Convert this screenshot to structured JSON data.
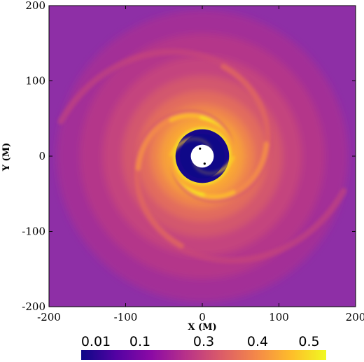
{
  "chart_data": {
    "type": "heatmap",
    "title": "",
    "xlabel": "X (M)",
    "ylabel": "Y (M)",
    "xlim": [
      -200,
      200
    ],
    "ylim": [
      -200,
      200
    ],
    "x_ticks": [
      -200,
      -100,
      0,
      100,
      200
    ],
    "y_ticks": [
      -200,
      -100,
      0,
      100,
      200
    ],
    "x_tick_labels": [
      "-200",
      "-100",
      "0",
      "100",
      "200"
    ],
    "y_tick_labels": [
      "-200",
      "-100",
      "0",
      "100",
      "200"
    ],
    "colorbar": {
      "placement": "bottom",
      "colormap": "plasma",
      "tick_labels": [
        "0.01",
        "0.1",
        "0.3",
        "0.4",
        "0.5"
      ],
      "tick_fractions": [
        0.06,
        0.24,
        0.5,
        0.72,
        0.93
      ],
      "stops": [
        "#0d0887",
        "#5302a3",
        "#8b0aa5",
        "#b83289",
        "#db5c68",
        "#f48849",
        "#febd2a",
        "#f0f921"
      ]
    },
    "field": {
      "description_free": true,
      "background_color": "#8e2fa6",
      "inner_cavity_radius": 35,
      "horizon_radius": 15,
      "black_hole_positions": [
        [
          -3,
          10
        ],
        [
          3,
          -10
        ]
      ],
      "spiral_arms": 2,
      "max_ring_radius": 190
    }
  }
}
